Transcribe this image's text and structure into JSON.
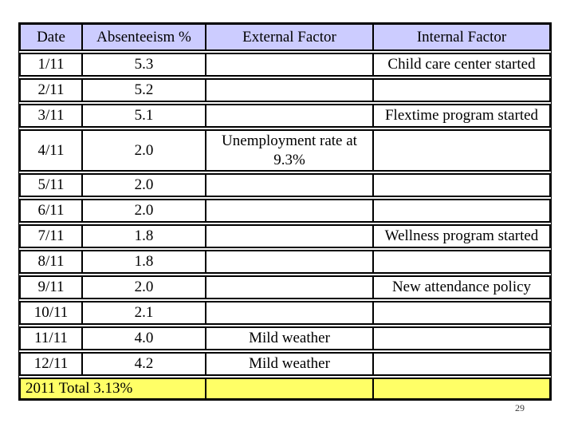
{
  "page": {
    "number": "29"
  },
  "table": {
    "headers": [
      "Date",
      "Absenteeism %",
      "External Factor",
      "Internal Factor"
    ],
    "rows": [
      {
        "date": "1/11",
        "absenteeism": "5.3",
        "external": "",
        "internal": "Child care center started"
      },
      {
        "date": "2/11",
        "absenteeism": "5.2",
        "external": "",
        "internal": ""
      },
      {
        "date": "3/11",
        "absenteeism": "5.1",
        "external": "",
        "internal": "Flextime program started"
      },
      {
        "date": "4/11",
        "absenteeism": "2.0",
        "external": "Unemployment rate at\n9.3%",
        "internal": ""
      },
      {
        "date": "5/11",
        "absenteeism": "2.0",
        "external": "",
        "internal": ""
      },
      {
        "date": "6/11",
        "absenteeism": "2.0",
        "external": "",
        "internal": ""
      },
      {
        "date": "7/11",
        "absenteeism": "1.8",
        "external": "",
        "internal": "Wellness program started"
      },
      {
        "date": "8/11",
        "absenteeism": "1.8",
        "external": "",
        "internal": ""
      },
      {
        "date": "9/11",
        "absenteeism": "2.0",
        "external": "",
        "internal": "New attendance policy"
      },
      {
        "date": "10/11",
        "absenteeism": "2.1",
        "external": "",
        "internal": ""
      },
      {
        "date": "11/11",
        "absenteeism": "4.0",
        "external": "Mild weather",
        "internal": ""
      },
      {
        "date": "12/11",
        "absenteeism": "4.2",
        "external": "Mild weather",
        "internal": ""
      }
    ],
    "total_label": "2011 Total 3.13%",
    "colors": {
      "header_bg": "#ccccff",
      "total_bg": "#ffff66",
      "border": "#000000",
      "page_number": "#3a3a3a"
    }
  }
}
